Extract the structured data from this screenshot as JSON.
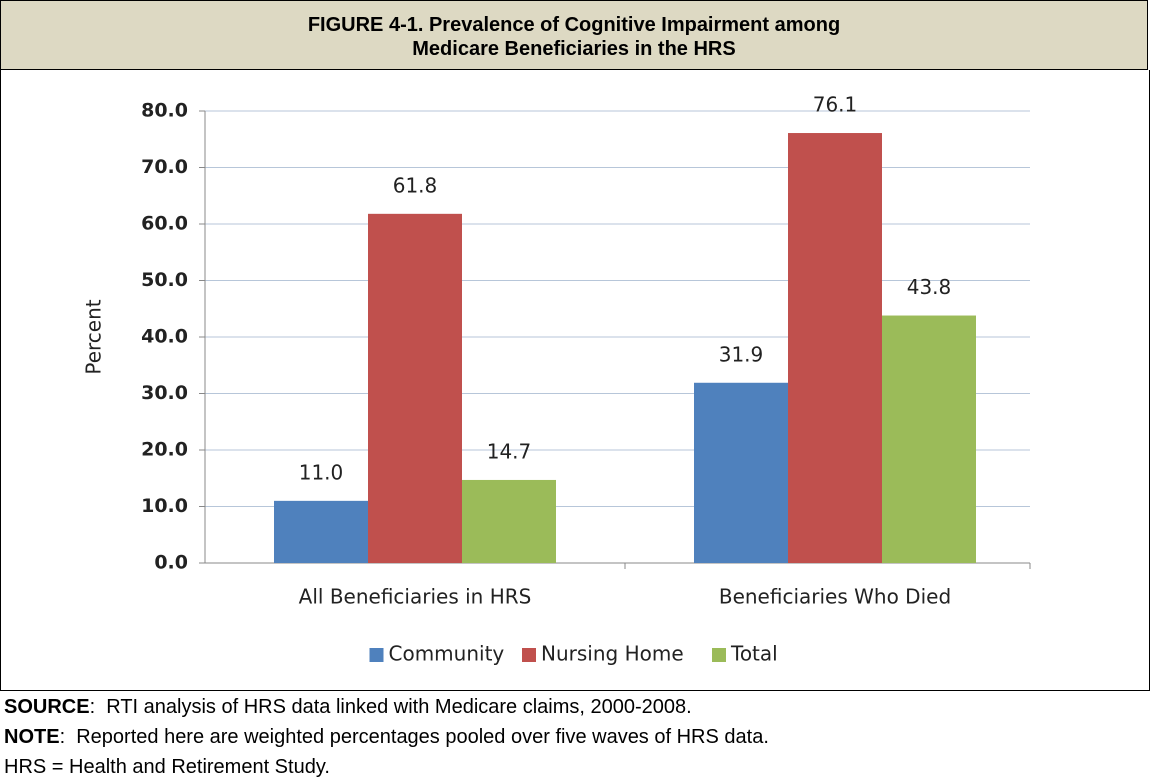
{
  "header": {
    "lines": [
      "FIGURE 4-1. Prevalence of Cognitive Impairment among",
      "Medicare Beneficiaries in the HRS"
    ]
  },
  "chart_data": {
    "type": "bar",
    "y_label": "Percent",
    "categories": [
      "All Beneficiaries in HRS",
      "Beneficiaries Who Died"
    ],
    "series": [
      {
        "name": "Community",
        "color": "#4f81bd",
        "values": [
          11.0,
          31.9
        ],
        "value_labels": [
          "11.0",
          "31.9"
        ]
      },
      {
        "name": "Nursing Home",
        "color": "#c0504d",
        "values": [
          61.8,
          76.1
        ],
        "value_labels": [
          "61.8",
          "76.1"
        ]
      },
      {
        "name": "Total",
        "color": "#9bbb59",
        "values": [
          14.7,
          43.8
        ],
        "value_labels": [
          "14.7",
          "43.8"
        ]
      }
    ],
    "ylim": [
      0,
      80
    ],
    "yticks": [
      {
        "value": 0,
        "label": "0.0"
      },
      {
        "value": 10,
        "label": "10.0"
      },
      {
        "value": 20,
        "label": "20.0"
      },
      {
        "value": 30,
        "label": "30.0"
      },
      {
        "value": 40,
        "label": "40.0"
      },
      {
        "value": 50,
        "label": "50.0"
      },
      {
        "value": 60,
        "label": "60.0"
      },
      {
        "value": 70,
        "label": "70.0"
      },
      {
        "value": 80,
        "label": "80.0"
      }
    ],
    "grid": true,
    "legend": "bottom"
  },
  "notes": [
    {
      "label": "SOURCE",
      "text": ":  RTI analysis of HRS data linked with Medicare claims, 2000-2008."
    },
    {
      "label": "NOTE",
      "text": ":  Reported here are weighted percentages pooled over five waves of HRS data."
    },
    {
      "label": "",
      "text": "HRS = Health and Retirement Study."
    }
  ]
}
